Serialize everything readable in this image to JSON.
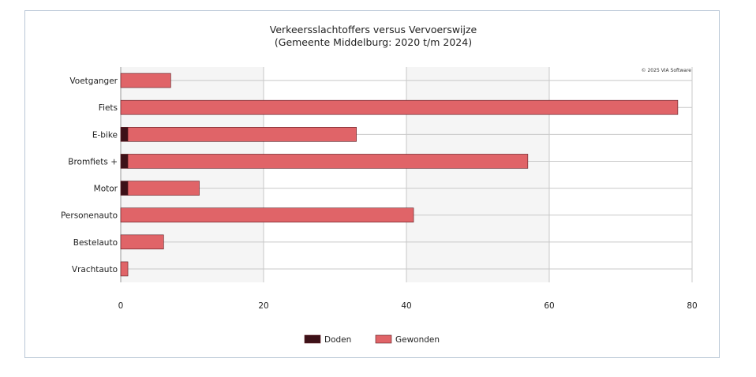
{
  "colors": {
    "doden": "#3d1118",
    "gewonden": "#e06468",
    "band": "#f5f5f5",
    "grid": "#c8c8c8",
    "frame": "#b9c7d6"
  },
  "chart_data": {
    "type": "bar",
    "orientation": "horizontal",
    "stacked": true,
    "title": "Verkeersslachtoffers versus Vervoerswijze",
    "subtitle": "(Gemeente Middelburg: 2020 t/m 2024)",
    "credit": "© 2025 VIA Software",
    "categories": [
      "Voetganger",
      "Fiets",
      "E-bike",
      "Bromfiets +",
      "Motor",
      "Personenauto",
      "Bestelauto",
      "Vrachtauto"
    ],
    "series": [
      {
        "name": "Doden",
        "values": [
          0,
          0,
          1,
          1,
          1,
          0,
          0,
          0
        ]
      },
      {
        "name": "Gewonden",
        "values": [
          7,
          78,
          32,
          56,
          10,
          41,
          6,
          1
        ]
      }
    ],
    "xlim": [
      0,
      80
    ],
    "xticks": [
      "0",
      "20",
      "40",
      "60",
      "80"
    ],
    "grid": true,
    "legend": "bottom"
  }
}
